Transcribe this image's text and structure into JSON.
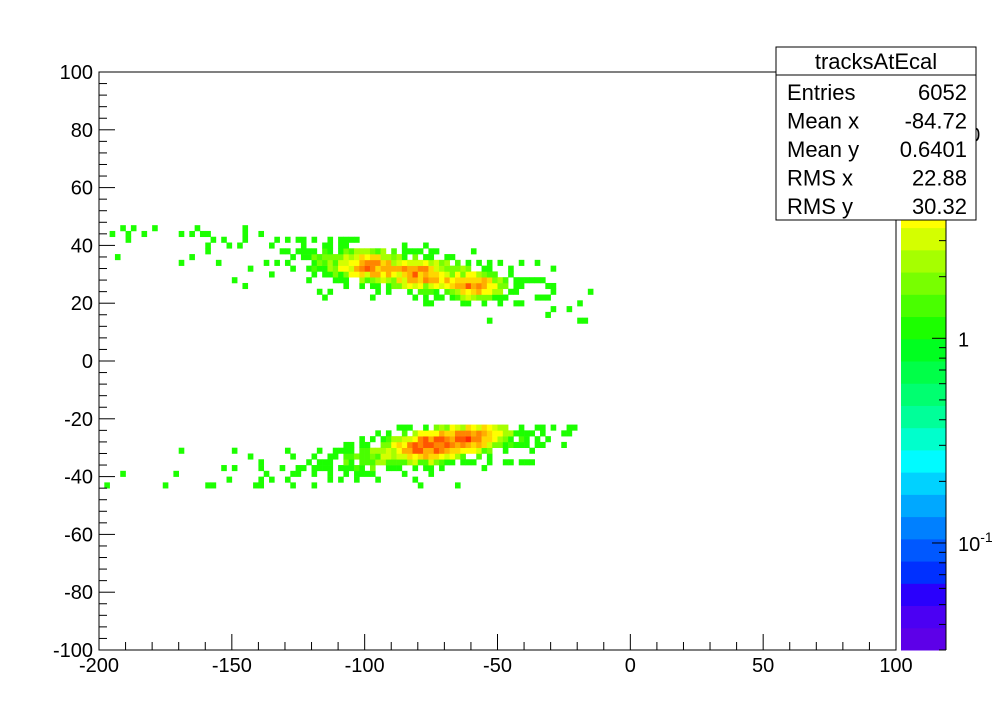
{
  "chart_data": {
    "type": "heatmap",
    "title": "",
    "xlabel": "",
    "ylabel": "",
    "xlim": [
      -200,
      100
    ],
    "ylim": [
      -100,
      100
    ],
    "x_ticks": [
      "-200",
      "-150",
      "-100",
      "-50",
      "0",
      "50",
      "100"
    ],
    "y_ticks": [
      "100",
      "80",
      "60",
      "40",
      "20",
      "0",
      "-20",
      "-40",
      "-60",
      "-80",
      "-100"
    ],
    "color_scale": "log",
    "colorbar_labels": [
      {
        "label": "10",
        "exp": "-1",
        "value": 0.1
      },
      {
        "label": "1",
        "exp": "",
        "value": 1
      },
      {
        "label": "10",
        "exp": "",
        "value": 10
      }
    ],
    "colorbar_range": [
      0.03,
      20
    ],
    "palette": [
      "#5d00e8",
      "#4b00f3",
      "#2a00fc",
      "#0030ff",
      "#0058ff",
      "#0080ff",
      "#00a8ff",
      "#00d2ff",
      "#00fbff",
      "#00ffcc",
      "#00ff99",
      "#00ff70",
      "#00ff48",
      "#00ff20",
      "#1cff00",
      "#49ff00",
      "#78ff00",
      "#a6ff00",
      "#d4ff00",
      "#ffff00",
      "#ffd700",
      "#ffae00",
      "#ff8500",
      "#ff5500",
      "#ff2a00",
      "#ff0000"
    ],
    "grid": false,
    "stats": {
      "name": "tracksAtEcal",
      "rows": [
        {
          "label": "Entries",
          "value": "6052"
        },
        {
          "label": "Mean x",
          "value": "-84.72"
        },
        {
          "label": "Mean y",
          "value": "0.6401"
        },
        {
          "label": "RMS x",
          "value": "22.88"
        },
        {
          "label": "RMS y",
          "value": "30.32"
        }
      ]
    },
    "clusters": [
      {
        "x_center": -88,
        "y_center": 30.5,
        "x_range": [
          -200,
          -15
        ],
        "y_range": [
          13,
          46
        ],
        "slope": -0.12,
        "peaks": [
          [
            -100,
            32
          ],
          [
            -80,
            29
          ],
          [
            -60,
            25
          ]
        ]
      },
      {
        "x_center": -75,
        "y_center": -31,
        "x_range": [
          -200,
          -20
        ],
        "y_range": [
          -44,
          -22
        ],
        "slope": 0.15,
        "peaks": [
          [
            -80,
            -31
          ],
          [
            -70,
            -29
          ],
          [
            -60,
            -27
          ]
        ]
      }
    ]
  }
}
